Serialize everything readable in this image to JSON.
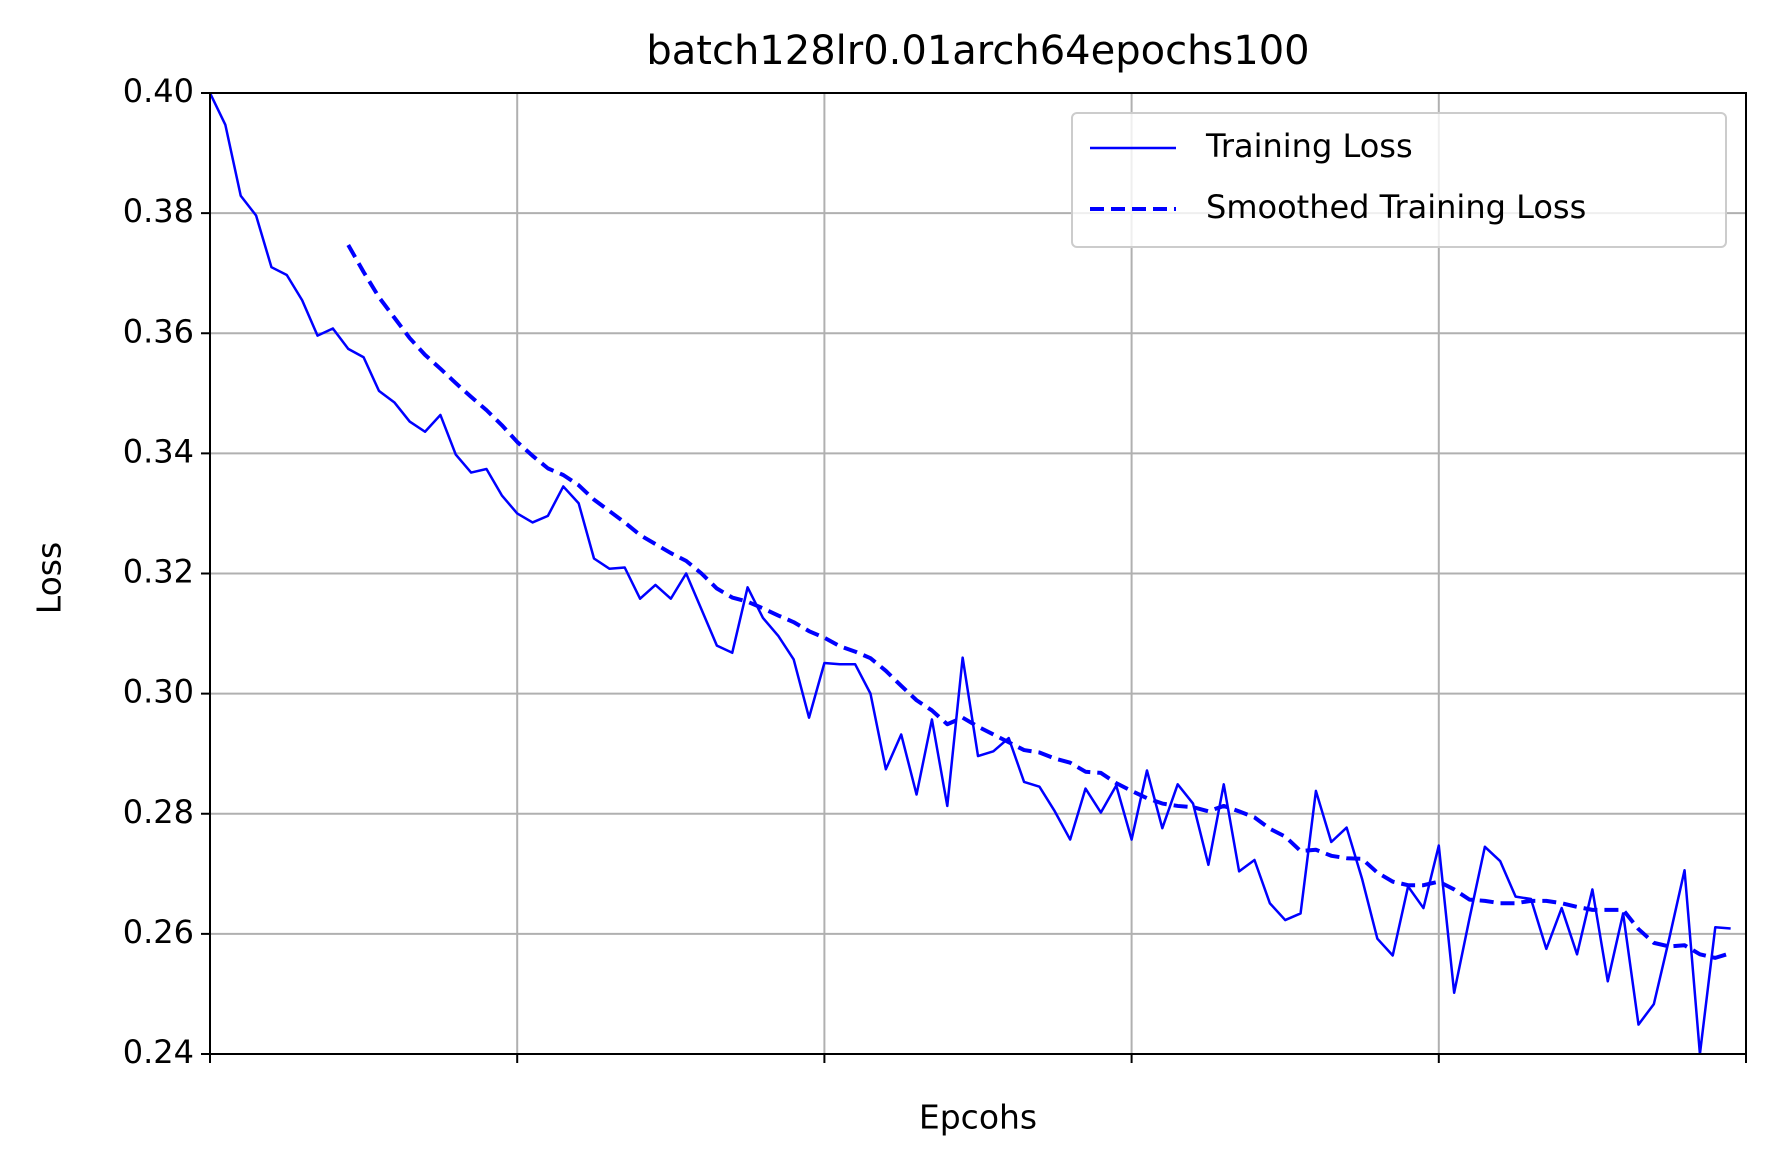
{
  "chart_data": {
    "type": "line",
    "title": "batch128lr0.01arch64epochs100",
    "x_label": "Epcohs",
    "y_label": "Loss",
    "x": [
      0,
      1,
      2,
      3,
      4,
      5,
      6,
      7,
      8,
      9,
      10,
      11,
      12,
      13,
      14,
      15,
      16,
      17,
      18,
      19,
      20,
      21,
      22,
      23,
      24,
      25,
      26,
      27,
      28,
      29,
      30,
      31,
      32,
      33,
      34,
      35,
      36,
      37,
      38,
      39,
      40,
      41,
      42,
      43,
      44,
      45,
      46,
      47,
      48,
      49,
      50,
      51,
      52,
      53,
      54,
      55,
      56,
      57,
      58,
      59,
      60,
      61,
      62,
      63,
      64,
      65,
      66,
      67,
      68,
      69,
      70,
      71,
      72,
      73,
      74,
      75,
      76,
      77,
      78,
      79,
      80,
      81,
      82,
      83,
      84,
      85,
      86,
      87,
      88,
      89,
      90,
      91,
      92,
      93,
      94,
      95,
      96,
      97,
      98,
      99
    ],
    "series": [
      {
        "name": "Training Loss",
        "color": "#0000ff",
        "linestyle": "solid",
        "values": [
          0.4,
          0.3947,
          0.3829,
          0.3796,
          0.371,
          0.3697,
          0.3655,
          0.3596,
          0.3608,
          0.3574,
          0.356,
          0.3504,
          0.3485,
          0.3453,
          0.3436,
          0.3464,
          0.3398,
          0.3368,
          0.3374,
          0.333,
          0.33,
          0.3285,
          0.3296,
          0.3345,
          0.3317,
          0.3225,
          0.3208,
          0.321,
          0.3158,
          0.3181,
          0.3158,
          0.32,
          0.314,
          0.308,
          0.3068,
          0.3177,
          0.3126,
          0.3096,
          0.3057,
          0.296,
          0.3051,
          0.3049,
          0.3049,
          0.3,
          0.2874,
          0.2932,
          0.2832,
          0.2957,
          0.2813,
          0.306,
          0.2896,
          0.2904,
          0.2926,
          0.2853,
          0.2845,
          0.2804,
          0.2757,
          0.2842,
          0.2802,
          0.2847,
          0.2757,
          0.2872,
          0.2776,
          0.2849,
          0.2817,
          0.2715,
          0.2849,
          0.2704,
          0.2723,
          0.2651,
          0.2623,
          0.2634,
          0.2838,
          0.2753,
          0.2777,
          0.2692,
          0.2592,
          0.2564,
          0.2679,
          0.2643,
          0.2747,
          0.2502,
          0.2626,
          0.2745,
          0.2721,
          0.2662,
          0.2658,
          0.2575,
          0.2643,
          0.2566,
          0.2674,
          0.2521,
          0.2634,
          0.2449,
          0.2483,
          0.2592,
          0.2706,
          0.24,
          0.2611,
          0.2609
        ]
      },
      {
        "name": "Smoothed Training Loss",
        "color": "#0000ff",
        "linestyle": "dashed",
        "values": [
          null,
          null,
          null,
          null,
          null,
          null,
          null,
          null,
          null,
          0.3747,
          0.3702,
          0.366,
          0.3626,
          0.3592,
          0.3564,
          0.3541,
          0.3517,
          0.3494,
          0.3472,
          0.3447,
          0.3419,
          0.3396,
          0.3375,
          0.3364,
          0.3347,
          0.3323,
          0.3304,
          0.3285,
          0.3264,
          0.3249,
          0.3234,
          0.3221,
          0.32,
          0.3175,
          0.316,
          0.3153,
          0.3142,
          0.313,
          0.3119,
          0.3104,
          0.3093,
          0.3079,
          0.307,
          0.3059,
          0.3038,
          0.3013,
          0.2989,
          0.2972,
          0.2949,
          0.296,
          0.2945,
          0.2932,
          0.2919,
          0.2906,
          0.2902,
          0.2892,
          0.2885,
          0.287,
          0.2868,
          0.2851,
          0.2838,
          0.2826,
          0.2817,
          0.2813,
          0.2811,
          0.2804,
          0.2813,
          0.2804,
          0.2794,
          0.2775,
          0.2762,
          0.2738,
          0.274,
          0.273,
          0.2726,
          0.2725,
          0.2702,
          0.2687,
          0.2681,
          0.2681,
          0.2687,
          0.2674,
          0.2657,
          0.2655,
          0.2651,
          0.2651,
          0.2655,
          0.2655,
          0.2651,
          0.2645,
          0.264,
          0.264,
          0.264,
          0.2608,
          0.2585,
          0.2579,
          0.2581,
          0.2566,
          0.256,
          0.2568
        ]
      }
    ],
    "xlim": [
      0,
      100
    ],
    "xticks": [
      0,
      20,
      40,
      60,
      80,
      100
    ],
    "ylim": [
      0.24,
      0.4
    ],
    "yticks": [
      {
        "value": 0.24,
        "label": "0.24"
      },
      {
        "value": 0.26,
        "label": "0.26"
      },
      {
        "value": 0.28,
        "label": "0.28"
      },
      {
        "value": 0.3,
        "label": "0.30"
      },
      {
        "value": 0.32,
        "label": "0.32"
      },
      {
        "value": 0.34,
        "label": "0.34"
      },
      {
        "value": 0.36,
        "label": "0.36"
      },
      {
        "value": 0.38,
        "label": "0.38"
      },
      {
        "value": 0.4,
        "label": "0.40"
      }
    ],
    "grid": true,
    "legend_location": "upper right"
  }
}
